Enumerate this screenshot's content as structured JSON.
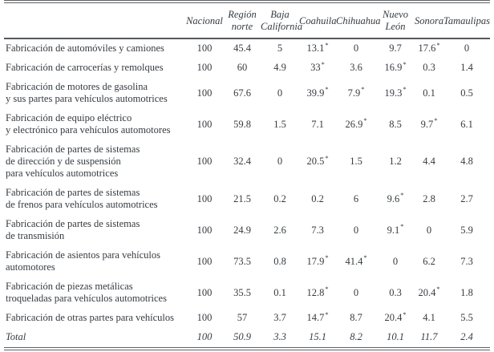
{
  "table": {
    "corner_label": "",
    "columns": [
      "Nacional",
      "Región\nnorte",
      "Baja\nCalifornia",
      "Coahuila",
      "Chihuahua",
      "Nuevo\nLeón",
      "Sonora",
      "Tamaulipas"
    ],
    "rows": [
      {
        "label": "Fabricación de automóviles y camiones",
        "values": [
          "100",
          "45.4",
          "5",
          "13.1*",
          "0",
          "9.7",
          "17.6*",
          "0"
        ]
      },
      {
        "label": "Fabricación de carrocerías y remolques",
        "values": [
          "100",
          "60",
          "4.9",
          "33*",
          "3.6",
          "16.9*",
          "0.3",
          "1.4"
        ]
      },
      {
        "label": "Fabricación de motores de gasolina\ny sus partes para vehículos automotrices",
        "values": [
          "100",
          "67.6",
          "0",
          "39.9*",
          "7.9*",
          "19.3*",
          "0.1",
          "0.5"
        ]
      },
      {
        "label": "Fabricación de equipo eléctrico\ny electrónico para vehículos automotores",
        "values": [
          "100",
          "59.8",
          "1.5",
          "7.1",
          "26.9*",
          "8.5",
          "9.7*",
          "6.1"
        ]
      },
      {
        "label": "Fabricación de partes de sistemas\nde dirección y de suspensión\npara vehículos automotrices",
        "values": [
          "100",
          "32.4",
          "0",
          "20.5*",
          "1.5",
          "1.2",
          "4.4",
          "4.8"
        ]
      },
      {
        "label": "Fabricación de partes de sistemas\nde frenos para vehículos automotrices",
        "values": [
          "100",
          "21.5",
          "0.2",
          "0.2",
          "6",
          "9.6*",
          "2.8",
          "2.7"
        ]
      },
      {
        "label": "Fabricación de partes de sistemas\nde transmisión",
        "values": [
          "100",
          "24.9",
          "2.6",
          "7.3",
          "0",
          "9.1*",
          "0",
          "5.9"
        ]
      },
      {
        "label": "Fabricación de asientos para vehículos\nautomotores",
        "values": [
          "100",
          "73.5",
          "0.8",
          "17.9*",
          "41.4*",
          "0",
          "6.2",
          "7.3"
        ]
      },
      {
        "label": "Fabricación de piezas metálicas\ntroqueladas para vehículos automotrices",
        "values": [
          "100",
          "35.5",
          "0.1",
          "12.8*",
          "0",
          "0.3",
          "20.4*",
          "1.8"
        ]
      },
      {
        "label": "Fabricación de otras partes para vehículos",
        "values": [
          "100",
          "57",
          "3.7",
          "14.7*",
          "8.7",
          "20.4*",
          "4.1",
          "5.5"
        ]
      }
    ],
    "total_row": {
      "label": "Total",
      "values": [
        "100",
        "50.9",
        "3.3",
        "15.1",
        "8.2",
        "10.1",
        "11.7",
        "2.4"
      ]
    },
    "footnote_marker": "*"
  },
  "colors": {
    "text": "#363b40",
    "rule": "#5c6064"
  }
}
